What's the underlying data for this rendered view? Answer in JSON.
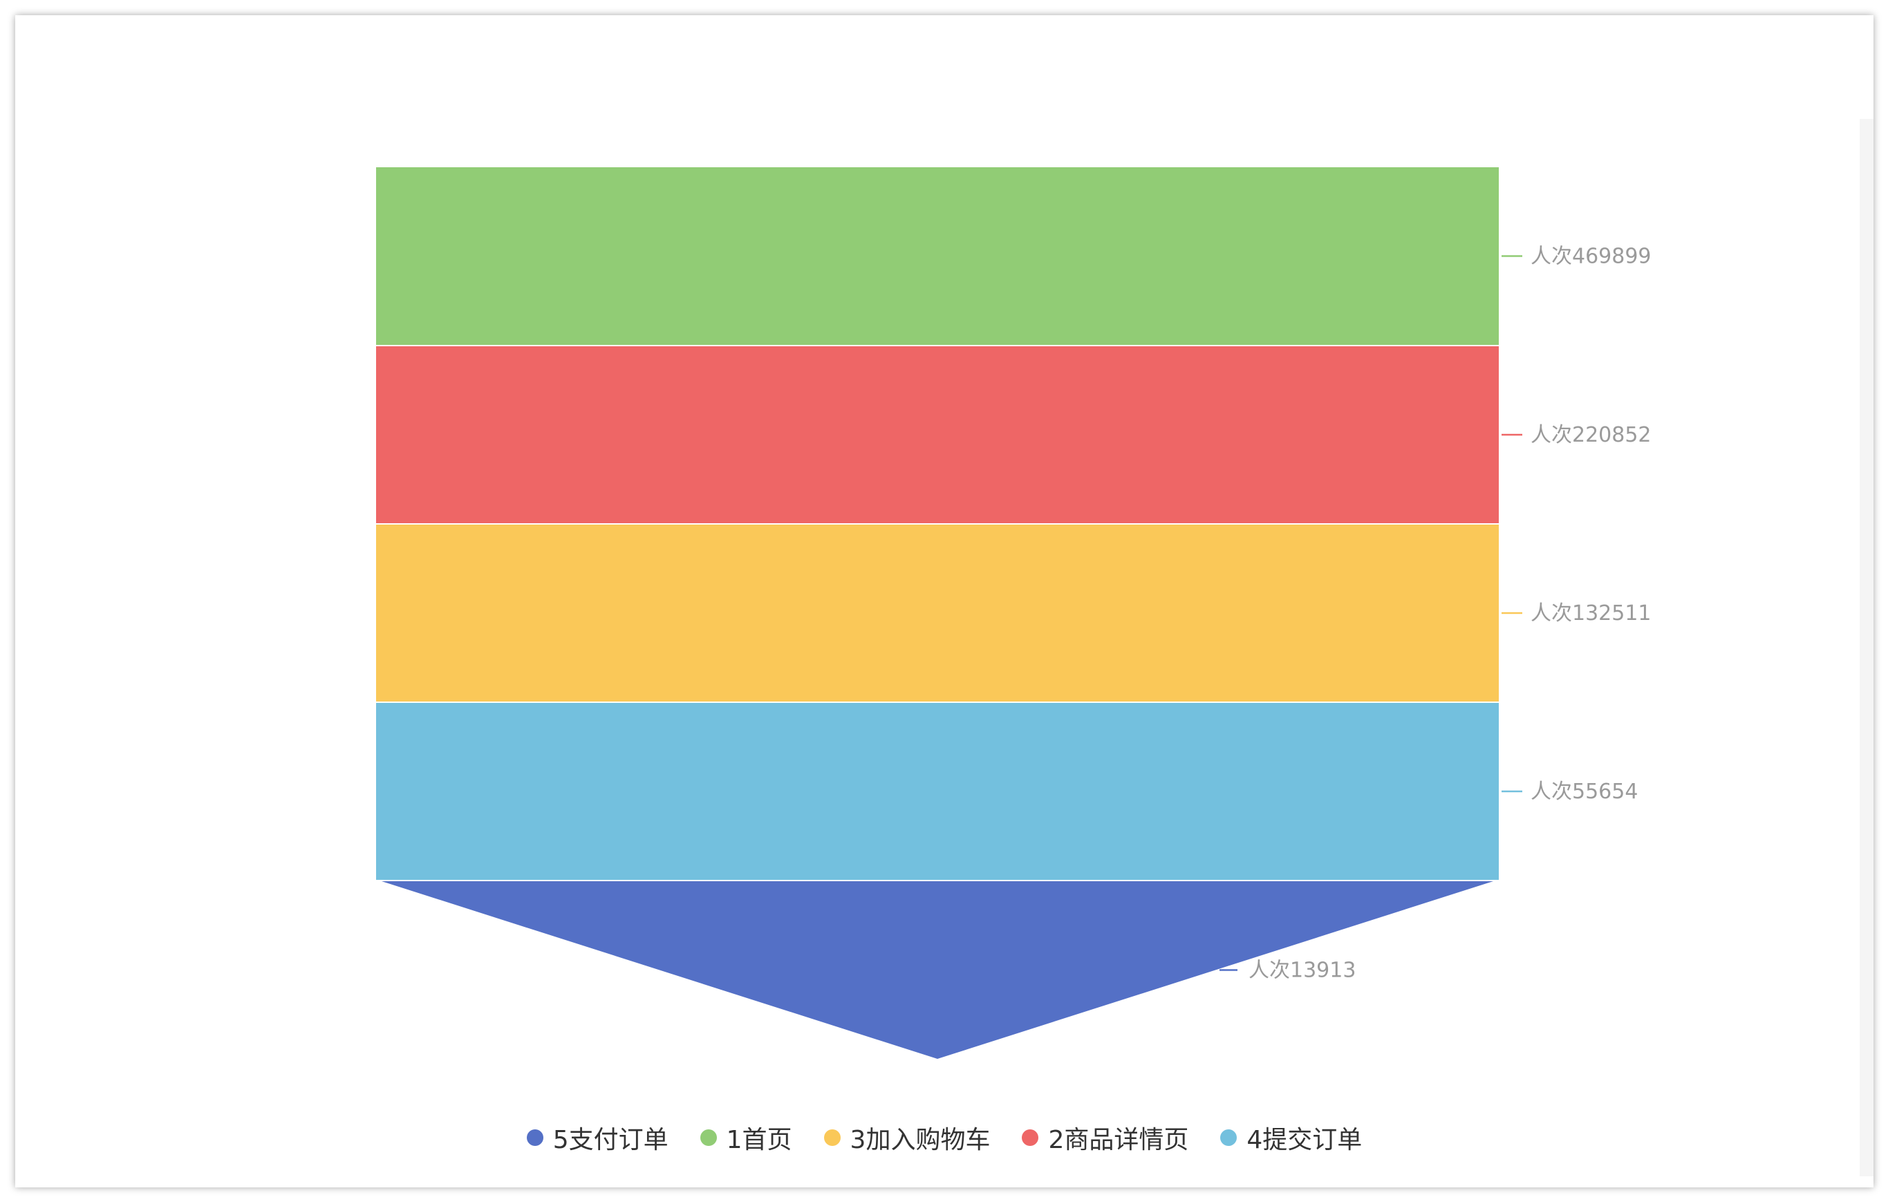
{
  "chart_data": {
    "type": "funnel",
    "title": "",
    "label_prefix": "人次",
    "stages": [
      {
        "name": "1首页",
        "value": 469899,
        "label": "人次469899",
        "color": "#91cc75"
      },
      {
        "name": "2商品详情页",
        "value": 220852,
        "label": "人次220852",
        "color": "#ee6666"
      },
      {
        "name": "3加入购物车",
        "value": 132511,
        "label": "人次132511",
        "color": "#fac858"
      },
      {
        "name": "4提交订单",
        "value": 55654,
        "label": "人次55654",
        "color": "#73c0de"
      },
      {
        "name": "5支付订单",
        "value": 13913,
        "label": "人次13913",
        "color": "#5470c6"
      }
    ],
    "legend": {
      "placement": "bottom-center",
      "items": [
        {
          "name": "5支付订单",
          "color": "#5470c6"
        },
        {
          "name": "1首页",
          "color": "#91cc75"
        },
        {
          "name": "3加入购物车",
          "color": "#fac858"
        },
        {
          "name": "2商品详情页",
          "color": "#ee6666"
        },
        {
          "name": "4提交订单",
          "color": "#73c0de"
        }
      ]
    }
  }
}
